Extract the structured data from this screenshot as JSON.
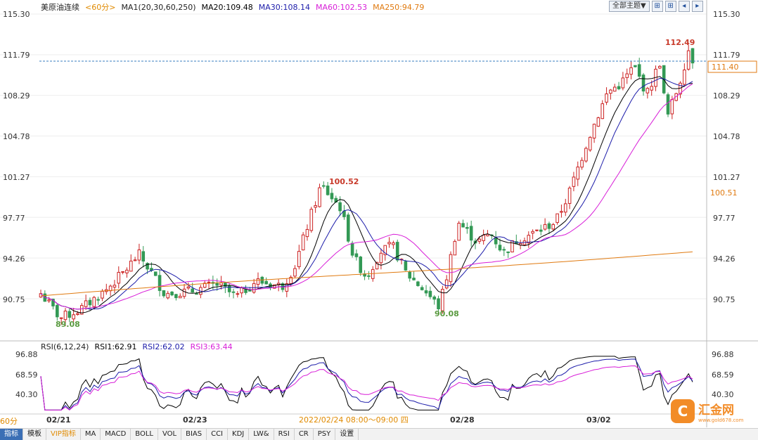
{
  "header": {
    "symbol": "美原油连续",
    "period": "<60分>",
    "ma_label": "MA1(20,30,60,250)",
    "ma20": "MA20:109.48",
    "ma30": "MA30:108.14",
    "ma60": "MA60:102.53",
    "ma250": "MA250:94.79",
    "theme_button": "全部主题▼",
    "colors": {
      "ma20": "#000000",
      "ma30": "#1c1caa",
      "ma60": "#d81ed8",
      "ma250": "#e07a10",
      "up": "#cc2222",
      "down": "#339955"
    }
  },
  "rsi_header": {
    "label": "RSI(6,12,24)",
    "rsi1": "RSI1:62.91",
    "rsi2": "RSI2:62.02",
    "rsi3": "RSI3:63.44",
    "colors": {
      "rsi1": "#000000",
      "rsi2": "#1c1caa",
      "rsi3": "#d81ed8"
    }
  },
  "price_axis": {
    "ticks": [
      "115.30",
      "111.79",
      "108.29",
      "104.78",
      "101.27",
      "97.77",
      "94.26",
      "90.75"
    ],
    "current_price": "111.40",
    "marker_price": "100.51"
  },
  "rsi_axis": {
    "ticks": [
      "96.88",
      "68.59",
      "40.30"
    ]
  },
  "annotations": {
    "low1": "89.08",
    "high1": "100.52",
    "low2": "90.08",
    "high2": "112.49"
  },
  "x_axis": {
    "dates": [
      "02/21",
      "02/23",
      "02/28",
      "03/02"
    ],
    "cursor_time": "2022/02/24 08:00～09:00 四"
  },
  "bottom": {
    "period_select": "60分",
    "tabs": [
      "指标",
      "模板",
      "VIP指标",
      "MA",
      "MACD",
      "BOLL",
      "VOL",
      "BIAS",
      "CCI",
      "KDJ",
      "LW&",
      "RSI",
      "CR",
      "PSY",
      "设置"
    ]
  },
  "logo": {
    "text": "汇金网",
    "sub": "www.gold678.com"
  },
  "chart_data": {
    "type": "candlestick",
    "ylim": [
      88.0,
      115.3
    ],
    "rsi_ylim": [
      20,
      100
    ],
    "key_points": {
      "low_left": 89.08,
      "peak_mid": 100.52,
      "low_mid": 90.08,
      "peak_right": 112.49,
      "last": 111.4
    },
    "latest": {
      "MA20": 109.48,
      "MA30": 108.14,
      "MA60": 102.53,
      "MA250": 94.79,
      "RSI1": 62.91,
      "RSI2": 62.02,
      "RSI3": 63.44
    }
  }
}
